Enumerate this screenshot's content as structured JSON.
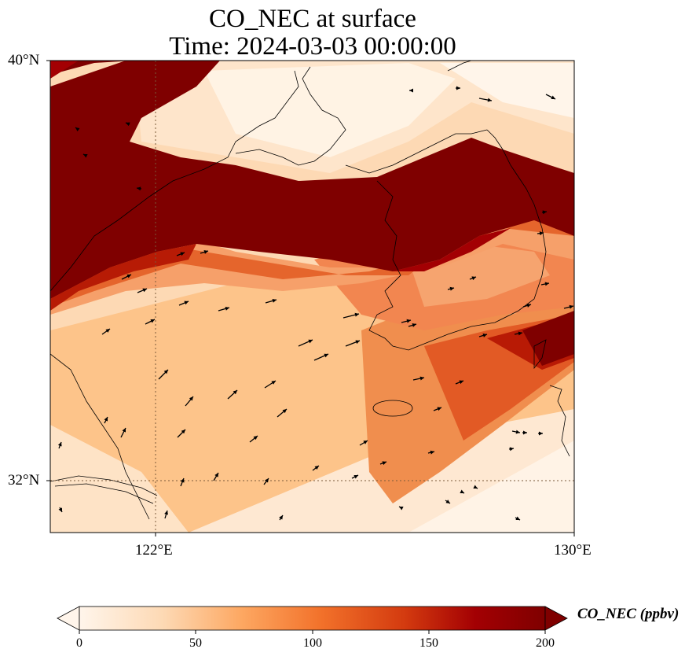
{
  "title_line1": "CO_NEC at surface",
  "title_line2": "Time: 2024-03-03 00:00:00",
  "axes": {
    "lat_labels": [
      "40°N",
      "32°N"
    ],
    "lon_labels": [
      "122°E",
      "130°E"
    ],
    "lat_range": [
      31,
      40
    ],
    "lon_range": [
      120,
      130
    ],
    "gridlines": "dotted"
  },
  "colorbar": {
    "label": "CO_NEC (ppbv)",
    "ticks": [
      "0",
      "50",
      "100",
      "150",
      "200"
    ],
    "range": [
      0,
      200
    ],
    "extend": "both",
    "colormap": [
      "#fff5eb",
      "#fdd9b4",
      "#fda761",
      "#f2712a",
      "#d33a0f",
      "#a30003",
      "#7f0000"
    ]
  },
  "colors": {
    "saturated": "#7f0000",
    "coastline": "#000000",
    "wind_arrow": "#000000"
  }
}
